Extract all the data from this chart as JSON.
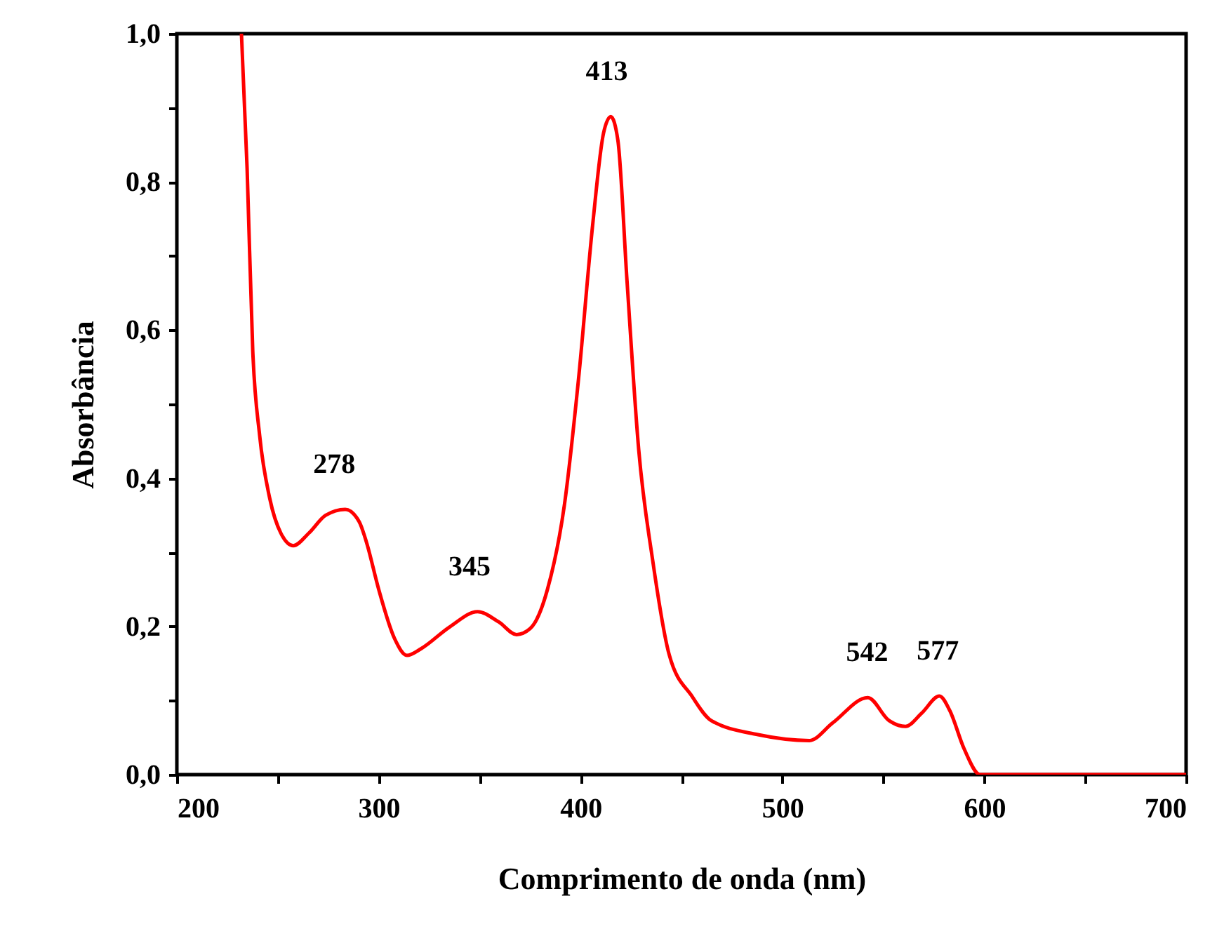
{
  "chart_data": {
    "type": "line",
    "xlabel": "Comprimento de onda (nm)",
    "ylabel": "Absorbância",
    "x": [
      232,
      234.8,
      237.6,
      241,
      246,
      251.5,
      257.7,
      265.4,
      273.7,
      283.4,
      290.4,
      293.9,
      300,
      307.8,
      314,
      321,
      335,
      349,
      359.5,
      368.3,
      375,
      383.6,
      392,
      399,
      406,
      411.4,
      415,
      418.5,
      423,
      428.8,
      435.8,
      443.9,
      455.4,
      464.7,
      487.9,
      513.4,
      525,
      542.3,
      552.8,
      561,
      569,
      577.8,
      583,
      590,
      598,
      700
    ],
    "series": [
      {
        "color": "#ff0000",
        "values": [
          1.0,
          0.818,
          0.572,
          0.458,
          0.373,
          0.326,
          0.309,
          0.326,
          0.35,
          0.358,
          0.341,
          0.314,
          0.25,
          0.184,
          0.161,
          0.17,
          0.199,
          0.22,
          0.206,
          0.189,
          0.197,
          0.25,
          0.364,
          0.534,
          0.742,
          0.866,
          0.888,
          0.856,
          0.667,
          0.439,
          0.288,
          0.162,
          0.105,
          0.073,
          0.054,
          0.046,
          0.07,
          0.104,
          0.073,
          0.065,
          0.083,
          0.106,
          0.086,
          0.035,
          0,
          0
        ]
      }
    ],
    "xlim": [
      200,
      700
    ],
    "xticks": [
      200,
      {
        "value": 250,
        "label": null
      },
      300,
      {
        "value": 350,
        "label": null
      },
      400,
      {
        "value": 450,
        "label": null
      },
      500,
      {
        "value": 550,
        "label": null
      },
      600,
      {
        "value": 650,
        "label": null
      },
      700
    ],
    "ylim": [
      0,
      1
    ],
    "yticks": [
      {
        "value": 0,
        "label": "0,0"
      },
      {
        "value": 0.1,
        "label": null
      },
      {
        "value": 0.2,
        "label": "0,2"
      },
      {
        "value": 0.3,
        "label": null
      },
      {
        "value": 0.4,
        "label": "0,4"
      },
      {
        "value": 0.5,
        "label": null
      },
      {
        "value": 0.6,
        "label": "0,6"
      },
      {
        "value": 0.7,
        "label": null
      },
      {
        "value": 0.8,
        "label": "0,8"
      },
      {
        "value": 0.9,
        "label": null
      },
      {
        "value": 1,
        "label": "1,0"
      }
    ],
    "annotations": [
      {
        "text": "278",
        "x": 278,
        "y": 0.358
      },
      {
        "text": "345",
        "x": 345,
        "y": 0.22
      },
      {
        "text": "413",
        "x": 413,
        "y": 0.888
      },
      {
        "text": "542",
        "x": 542,
        "y": 0.104
      },
      {
        "text": "577",
        "x": 577,
        "y": 0.106
      }
    ],
    "grid": false,
    "marker": "none",
    "line_style": "solid"
  }
}
